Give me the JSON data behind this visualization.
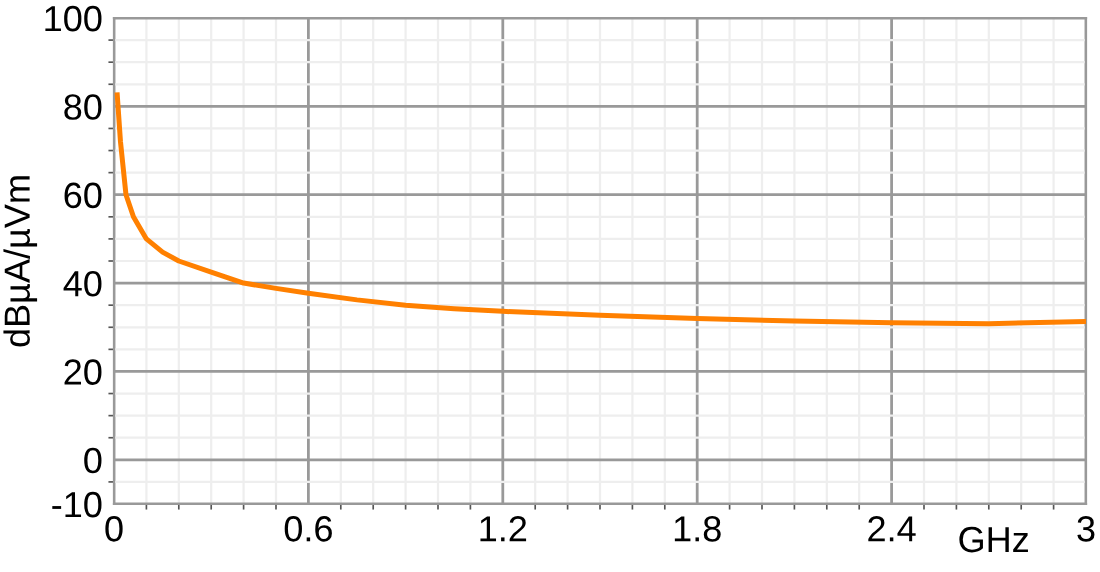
{
  "chart_data": {
    "type": "line",
    "xlabel": "GHz",
    "ylabel": "dBµA/µVm",
    "x": [
      0.01,
      0.02,
      0.037,
      0.06,
      0.1,
      0.15,
      0.2,
      0.3,
      0.4,
      0.5,
      0.6,
      0.75,
      0.9,
      1.05,
      1.2,
      1.5,
      1.8,
      2.1,
      2.4,
      2.7,
      3.0
    ],
    "series": [
      {
        "color": "#ff8000",
        "values": [
          82.6,
          72,
          60,
          55,
          50,
          47,
          45,
          42.5,
          40,
          38.8,
          37.7,
          36.2,
          35,
          34.2,
          33.6,
          32.7,
          32,
          31.4,
          31,
          30.8,
          31.3
        ]
      }
    ],
    "xlim": [
      0,
      3
    ],
    "xticks": [
      0,
      0.6,
      1.2,
      1.8,
      2.4,
      3
    ],
    "ylim": [
      -10,
      100
    ],
    "yticks": [
      -10,
      0,
      20,
      40,
      60,
      80,
      100
    ],
    "grid": true,
    "marker": "none",
    "line_style": "solid"
  }
}
